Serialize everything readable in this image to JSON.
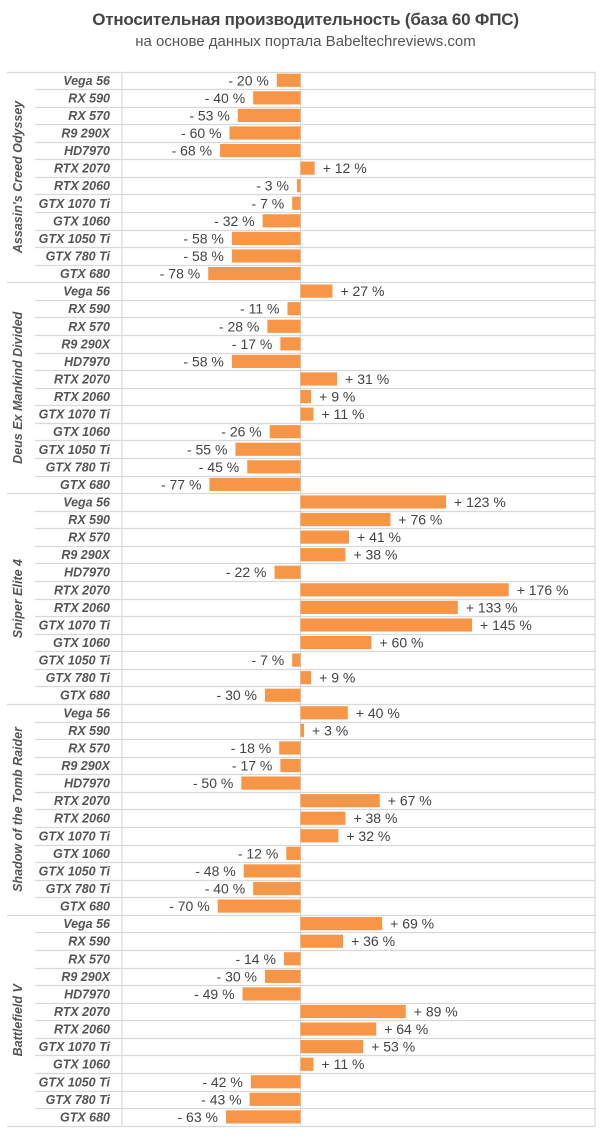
{
  "header": {
    "title": "Относительная производительность (база 60 ФПС)",
    "subtitle": "на основе данных портала Babeltechreviews.com"
  },
  "colors": {
    "bar": "#F79646",
    "grid": "#D9D9D9",
    "text": "#555555"
  },
  "chart_data": {
    "type": "bar",
    "orientation": "horizontal",
    "title": "Относительная производительность (база 60 ФПС)",
    "subtitle": "на основе данных портала Babeltechreviews.com",
    "xlabel": "",
    "ylabel": "",
    "unit": "%",
    "baseline": 0,
    "xlim": [
      -100,
      250
    ],
    "grid": true,
    "legend": "none",
    "categories": [
      "Vega 56",
      "RX 590",
      "RX 570",
      "R9 290X",
      "HD7970",
      "RTX 2070",
      "RTX 2060",
      "GTX 1070 Ti",
      "GTX 1060",
      "GTX 1050 Ti",
      "GTX 780 Ti",
      "GTX 680"
    ],
    "groups": [
      {
        "name": "Assasin's Creed Odyssey",
        "values": [
          -20,
          -40,
          -53,
          -60,
          -68,
          12,
          -3,
          -7,
          -32,
          -58,
          -58,
          -78
        ]
      },
      {
        "name": "Deus Ex Mankind Divided",
        "values": [
          27,
          -11,
          -28,
          -17,
          -58,
          31,
          9,
          11,
          -26,
          -55,
          -45,
          -77
        ]
      },
      {
        "name": "Sniper Elite 4",
        "values": [
          123,
          76,
          41,
          38,
          -22,
          176,
          133,
          145,
          60,
          -7,
          9,
          -30
        ]
      },
      {
        "name": "Shadow of the Tomb Raider",
        "values": [
          40,
          3,
          -18,
          -17,
          -50,
          67,
          38,
          32,
          -12,
          -48,
          -40,
          -70
        ]
      },
      {
        "name": "Battlefield V",
        "values": [
          69,
          36,
          -14,
          -30,
          -49,
          89,
          64,
          53,
          11,
          -42,
          -43,
          -63
        ]
      }
    ]
  }
}
